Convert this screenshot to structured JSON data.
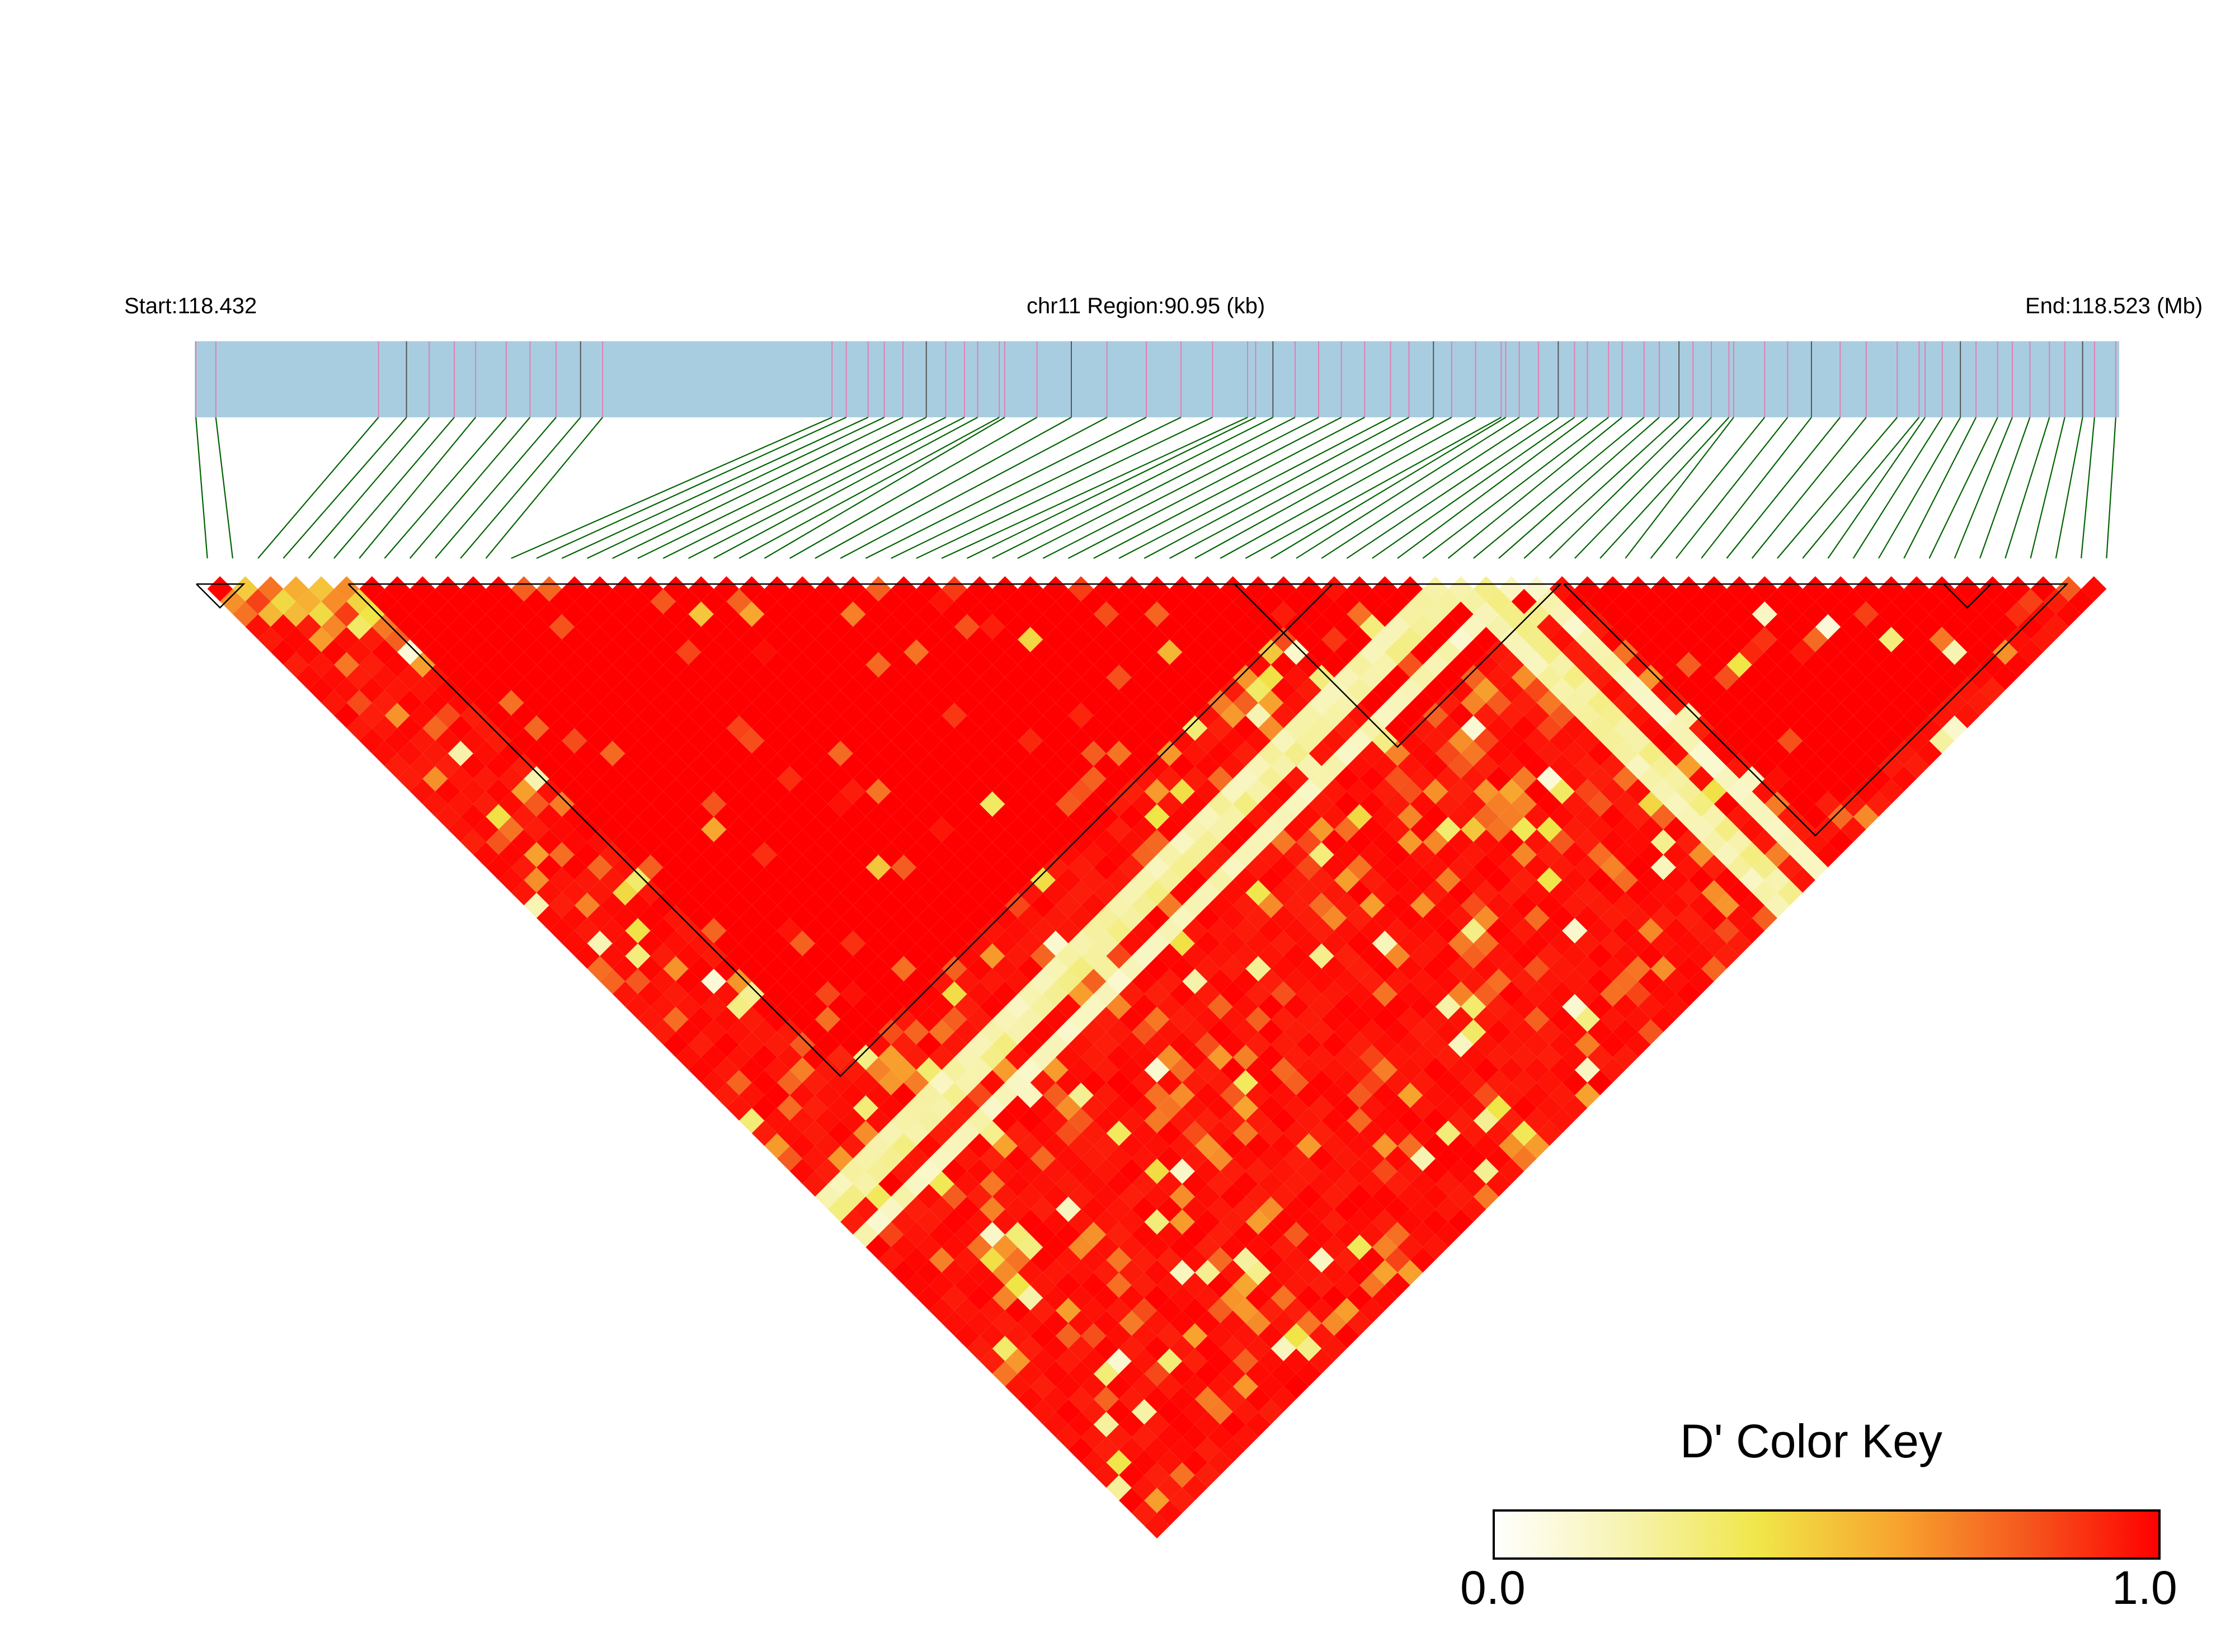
{
  "header": {
    "start": "Start:118.432",
    "region": "chr11 Region:90.95 (kb)",
    "end": "End:118.523 (Mb)"
  },
  "color_key": {
    "title": "D' Color Key",
    "min_label": "0.0",
    "max_label": "1.0",
    "stops": [
      "#ffffff",
      "#f7f3b0",
      "#f0e648",
      "#f7a62f",
      "#f5581e",
      "#ff0000"
    ]
  },
  "colors": {
    "gene_band": "#a9cde0",
    "marker_tick_pink": "#e07fb3",
    "marker_tick_dark": "#555555",
    "connector": "#006400",
    "block_outline": "#000000"
  },
  "chart_data": {
    "type": "heatmap",
    "description_of_axes": "Pairwise LD matrix (D') between SNPs along chr11 118.432–118.523 Mb",
    "region_start_mb": 118.432,
    "region_end_mb": 118.523,
    "n_markers": 76,
    "value_range": [
      0,
      1
    ],
    "haplotype_blocks": [
      [
        0,
        1
      ],
      [
        6,
        44
      ],
      [
        41,
        53
      ],
      [
        54,
        73
      ],
      [
        69,
        70
      ]
    ],
    "base_dprime": 0.97,
    "near_diagonal_low_dprime": 0.4,
    "white_stripes": [
      {
        "marker": 49,
        "dprime": 0.15
      },
      {
        "marker": 50,
        "dprime": 0.2
      },
      {
        "marker": 52,
        "dprime": 0.12
      }
    ],
    "notable_cells": [
      [
        18,
        21,
        0.5
      ],
      [
        20,
        23,
        0.6
      ],
      [
        24,
        27,
        0.7
      ],
      [
        30,
        35,
        0.45
      ],
      [
        35,
        41,
        0.55
      ],
      [
        39,
        45,
        0.5
      ],
      [
        44,
        48,
        0.3
      ],
      [
        57,
        64,
        0.4
      ],
      [
        60,
        63,
        0.15
      ],
      [
        62,
        66,
        0.1
      ],
      [
        64,
        69,
        0.3
      ],
      [
        66,
        72,
        0.2
      ],
      [
        22,
        40,
        0.35
      ],
      [
        28,
        47,
        0.4
      ],
      [
        33,
        55,
        0.3
      ],
      [
        40,
        60,
        0.5
      ],
      [
        45,
        62,
        0.35
      ],
      [
        48,
        66,
        0.45
      ],
      [
        10,
        30,
        0.6
      ],
      [
        15,
        38,
        0.5
      ]
    ]
  }
}
